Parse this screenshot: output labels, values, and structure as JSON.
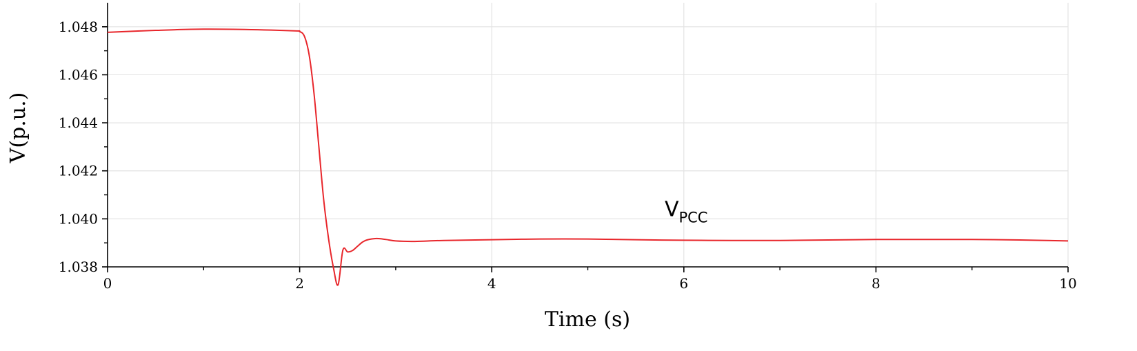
{
  "chart_data": {
    "type": "line",
    "xlabel": "Time (s)",
    "ylabel": "V(p.u.)",
    "xlim": [
      0,
      10
    ],
    "ylim": [
      1.038,
      1.049
    ],
    "x_ticks": [
      0,
      2,
      4,
      6,
      8,
      10
    ],
    "x_tick_labels": [
      "0",
      "2",
      "4",
      "6",
      "8",
      "10"
    ],
    "y_ticks": [
      1.038,
      1.04,
      1.042,
      1.044,
      1.046,
      1.048
    ],
    "y_tick_labels": [
      "1.038",
      "1.040",
      "1.042",
      "1.044",
      "1.046",
      "1.048"
    ],
    "grid": true,
    "line_color": "#e8262b",
    "grid_color": "#e3e3e3",
    "annotation": {
      "main": "V",
      "sub": "PCC",
      "x": 5.8,
      "y": 1.04
    },
    "series": [
      {
        "x": [
          0,
          0.5,
          1.0,
          1.5,
          1.95,
          2.0,
          2.05,
          2.1,
          2.15,
          2.2,
          2.25,
          2.3,
          2.35,
          2.4,
          2.45,
          2.5,
          2.55,
          2.6,
          2.65,
          2.7,
          2.8,
          2.9,
          3.0,
          3.2,
          3.5,
          4.0,
          4.5,
          5.0,
          5.5,
          6.0,
          6.5,
          7.0,
          7.5,
          8.0,
          8.5,
          9.0,
          9.5,
          10.0
        ],
        "y": [
          1.04777,
          1.04785,
          1.0479,
          1.04788,
          1.04783,
          1.0478,
          1.0476,
          1.0468,
          1.0452,
          1.043,
          1.0408,
          1.0392,
          1.038,
          1.03725,
          1.0387,
          1.03862,
          1.03868,
          1.03885,
          1.03902,
          1.03912,
          1.03918,
          1.03914,
          1.03908,
          1.03906,
          1.0391,
          1.03913,
          1.03916,
          1.03916,
          1.03913,
          1.03911,
          1.0391,
          1.0391,
          1.03912,
          1.03914,
          1.03914,
          1.03914,
          1.03912,
          1.03908
        ]
      }
    ]
  }
}
